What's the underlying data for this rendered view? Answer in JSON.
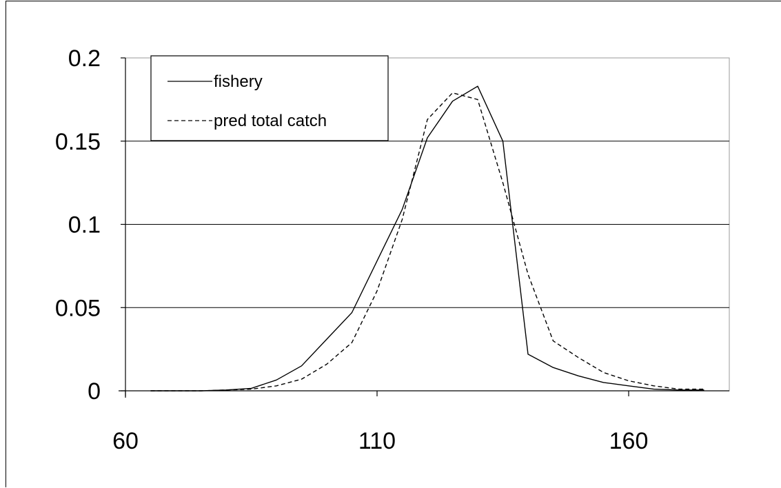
{
  "chart_data": {
    "type": "line",
    "title": "",
    "xlabel": "",
    "ylabel": "",
    "xlim": [
      60,
      180
    ],
    "ylim": [
      0,
      0.2
    ],
    "x_ticks": [
      60,
      110,
      160
    ],
    "x_tick_labels": [
      "60",
      "110",
      "160"
    ],
    "y_ticks": [
      0,
      0.05,
      0.1,
      0.15,
      0.2
    ],
    "y_tick_labels": [
      "0",
      "0.05",
      "0.1",
      "0.15",
      "0.2"
    ],
    "grid": "horizontal",
    "legend_position": "top-left",
    "series": [
      {
        "name": "fishery",
        "style": "solid",
        "color": "#000000",
        "x": [
          65,
          70,
          75,
          80,
          85,
          90,
          95,
          100,
          105,
          110,
          115,
          120,
          125,
          130,
          135,
          140,
          145,
          150,
          155,
          160,
          165,
          170,
          175
        ],
        "y": [
          0,
          0,
          0,
          0.0005,
          0.0015,
          0.0065,
          0.015,
          0.031,
          0.047,
          0.078,
          0.109,
          0.152,
          0.174,
          0.183,
          0.15,
          0.022,
          0.014,
          0.009,
          0.005,
          0.003,
          0.001,
          0.0005,
          0.0005
        ]
      },
      {
        "name": "pred total catch",
        "style": "dashed",
        "color": "#000000",
        "x": [
          65,
          70,
          75,
          80,
          85,
          90,
          95,
          100,
          105,
          110,
          115,
          120,
          125,
          130,
          135,
          140,
          145,
          150,
          155,
          160,
          165,
          170,
          175
        ],
        "y": [
          0,
          0,
          0,
          0.0005,
          0.001,
          0.003,
          0.007,
          0.016,
          0.029,
          0.06,
          0.103,
          0.163,
          0.179,
          0.175,
          0.125,
          0.07,
          0.03,
          0.02,
          0.011,
          0.006,
          0.003,
          0.001,
          0.001
        ]
      }
    ]
  }
}
